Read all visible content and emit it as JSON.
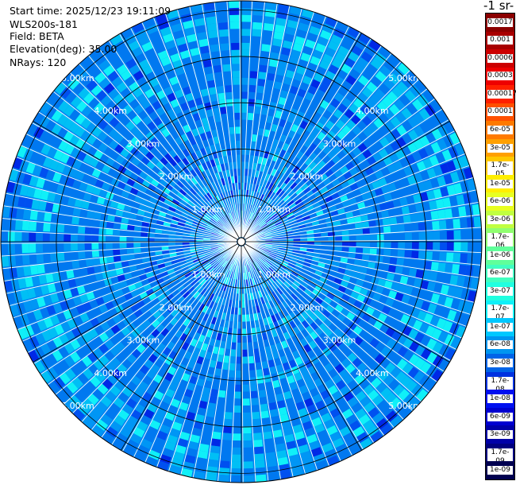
{
  "header": {
    "start_time": "Start time: 2025/12/23 19:11:09",
    "instrument": "WLS200s-181",
    "field": "Field: BETA",
    "elevation": "Elevation(deg): 35.00",
    "nrays": "NRays: 120"
  },
  "colorbar": {
    "title": "-1 sr-",
    "labels": [
      "0.0017",
      "0.001",
      "0.0006",
      "0.0003",
      "0.00017",
      "0.0001",
      "6e-05",
      "3e-05",
      "1.7e-05",
      "1e-05",
      "6e-06",
      "3e-06",
      "1.7e-06",
      "1e-06",
      "6e-07",
      "3e-07",
      "1.7e-07",
      "1e-07",
      "6e-08",
      "3e-08",
      "1.7e-08",
      "1e-08",
      "6e-09",
      "3e-09",
      "1.7e-09",
      "1e-09"
    ],
    "colors": [
      "#8b0000",
      "#a80000",
      "#cc0000",
      "#ee0000",
      "#ff2000",
      "#ff5000",
      "#ff7a00",
      "#ffa000",
      "#ffc800",
      "#ffee00",
      "#e8ff20",
      "#c0ff40",
      "#90ff70",
      "#60ff9a",
      "#40ffc0",
      "#20ffe0",
      "#10f0f8",
      "#00c8ff",
      "#0096f0",
      "#0064e8",
      "#0032e0",
      "#0010f0",
      "#0000d0",
      "#0000a8",
      "#000080",
      "#000050"
    ]
  },
  "chart_data": {
    "type": "heatmap",
    "projection": "polar (PPI)",
    "field": "BETA",
    "elevation_deg": 35.0,
    "n_rays": 120,
    "range_rings_km": [
      1.0,
      2.0,
      3.0,
      4.0,
      5.0
    ],
    "ring_labels": [
      "1.00km",
      "2.00km",
      "3.00km",
      "4.00km",
      "5.00km"
    ],
    "max_range_km": 5.2,
    "scale": "log",
    "value_range": [
      1e-09,
      0.0017
    ],
    "typical_values": {
      "near_center": 1e-08,
      "mid_range": 3e-08,
      "ring_near_5km": 1.7e-07
    }
  }
}
